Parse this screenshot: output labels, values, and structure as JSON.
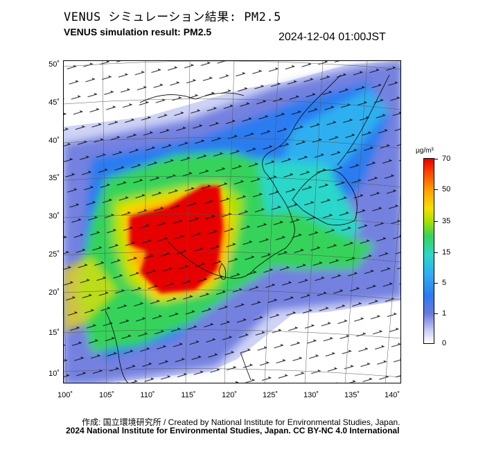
{
  "header": {
    "title_jp": "VENUS シミュレーション結果: PM2.5",
    "title_en": "VENUS simulation result: PM2.5",
    "timestamp": "2024-12-04 01:00JST"
  },
  "map": {
    "lat_labels": [
      "50˚",
      "45˚",
      "40˚",
      "35˚",
      "30˚",
      "25˚",
      "20˚",
      "15˚",
      "10˚"
    ],
    "lon_labels": [
      "100˚",
      "105˚",
      "110˚",
      "115˚",
      "120˚",
      "125˚",
      "130˚",
      "135˚",
      "140˚"
    ],
    "variable": "PM2.5 concentration",
    "overlay": "wind vectors"
  },
  "colorbar": {
    "unit": "µg/m³",
    "labels": [
      "70",
      "50",
      "35",
      "15",
      "5",
      "1",
      "0"
    ],
    "colors": {
      "zero": "#ffffff",
      "low": "#6a78dd",
      "mid_low": "#2fb0f0",
      "mid": "#36d35a",
      "mid_high": "#f5e000",
      "high": "#ff4a00",
      "max": "#e60000"
    }
  },
  "credits": {
    "line1": "作成: 国立環境研究所 / Created by National Institute for Environmental Studies, Japan.",
    "line2": "2024 National Institute for Environmental Studies, Japan. CC BY-NC 4.0 International"
  }
}
